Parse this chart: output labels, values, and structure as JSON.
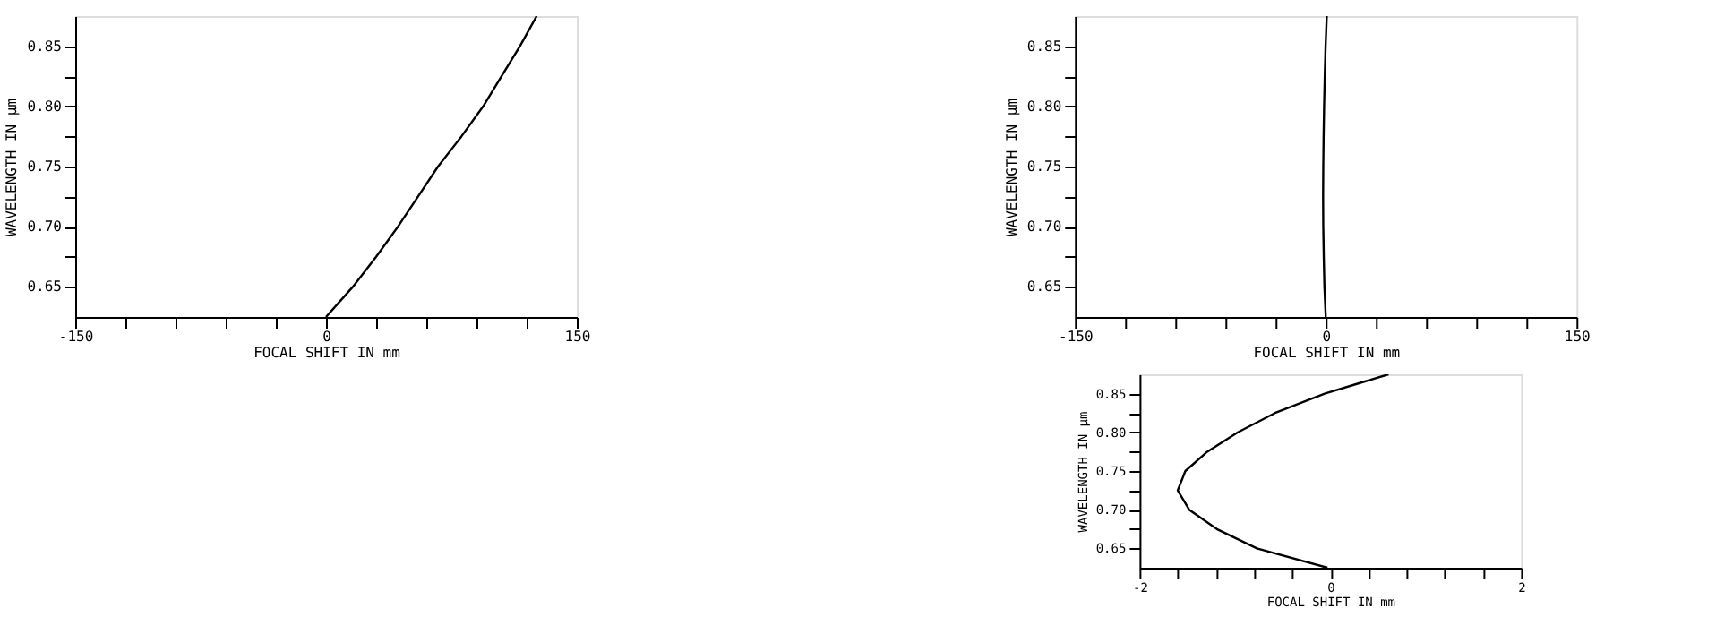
{
  "chart_data": [
    {
      "type": "line",
      "xlabel": "FOCAL SHIFT IN mm",
      "ylabel": "WAVELENGTH IN µm",
      "grid": false,
      "marker": "none",
      "line_style": "solid",
      "xlim": [
        -150,
        150
      ],
      "ylim": [
        0.625,
        0.875
      ],
      "xticks": [
        {
          "value": -150,
          "label": "-150"
        },
        {
          "value": -120,
          "label": null
        },
        {
          "value": -90,
          "label": null
        },
        {
          "value": -60,
          "label": null
        },
        {
          "value": -30,
          "label": null
        },
        {
          "value": 0,
          "label": "0"
        },
        {
          "value": 30,
          "label": null
        },
        {
          "value": 60,
          "label": null
        },
        {
          "value": 90,
          "label": null
        },
        {
          "value": 120,
          "label": null
        },
        {
          "value": 150,
          "label": "150"
        }
      ],
      "yticks": [
        {
          "value": 0.65,
          "label": "0.65"
        },
        {
          "value": 0.675,
          "label": null
        },
        {
          "value": 0.7,
          "label": "0.70"
        },
        {
          "value": 0.725,
          "label": null
        },
        {
          "value": 0.75,
          "label": "0.75"
        },
        {
          "value": 0.775,
          "label": null
        },
        {
          "value": 0.8,
          "label": "0.80"
        },
        {
          "value": 0.825,
          "label": null
        },
        {
          "value": 0.85,
          "label": "0.85"
        }
      ],
      "legend": false,
      "series": [
        {
          "color": "#000000",
          "x": [
            0,
            16,
            30,
            43,
            55,
            67,
            81,
            94,
            105,
            116,
            126
          ],
          "values": [
            0.625,
            0.65,
            0.675,
            0.7,
            0.725,
            0.75,
            0.775,
            0.8,
            0.825,
            0.85,
            0.875
          ]
        }
      ]
    },
    {
      "type": "line",
      "xlabel": "FOCAL SHIFT IN mm",
      "ylabel": "WAVELENGTH IN µm",
      "grid": false,
      "marker": "none",
      "line_style": "solid",
      "xlim": [
        -150,
        150
      ],
      "ylim": [
        0.625,
        0.875
      ],
      "xticks": [
        {
          "value": -150,
          "label": "-150"
        },
        {
          "value": -120,
          "label": null
        },
        {
          "value": -90,
          "label": null
        },
        {
          "value": -60,
          "label": null
        },
        {
          "value": -30,
          "label": null
        },
        {
          "value": 0,
          "label": "0"
        },
        {
          "value": 30,
          "label": null
        },
        {
          "value": 60,
          "label": null
        },
        {
          "value": 90,
          "label": null
        },
        {
          "value": 120,
          "label": null
        },
        {
          "value": 150,
          "label": "150"
        }
      ],
      "yticks": [
        {
          "value": 0.65,
          "label": "0.65"
        },
        {
          "value": 0.675,
          "label": null
        },
        {
          "value": 0.7,
          "label": "0.70"
        },
        {
          "value": 0.725,
          "label": null
        },
        {
          "value": 0.75,
          "label": "0.75"
        },
        {
          "value": 0.775,
          "label": null
        },
        {
          "value": 0.8,
          "label": "0.80"
        },
        {
          "value": 0.825,
          "label": null
        },
        {
          "value": 0.85,
          "label": "0.85"
        }
      ],
      "legend": false,
      "series": [
        {
          "color": "#000000",
          "x": [
            0,
            -0.8,
            -1.2,
            -1.5,
            -1.6,
            -1.5,
            -1.3,
            -1.0,
            -0.6,
            -0.1,
            0.6
          ],
          "values": [
            0.625,
            0.65,
            0.675,
            0.7,
            0.725,
            0.75,
            0.775,
            0.8,
            0.825,
            0.85,
            0.875
          ]
        }
      ]
    },
    {
      "type": "line",
      "xlabel": "FOCAL SHIFT IN mm",
      "ylabel": "WAVELENGTH IN µm",
      "grid": false,
      "legend": false,
      "marker": "none",
      "line_style": "solid",
      "xlim": [
        -2,
        2
      ],
      "ylim": [
        0.625,
        0.875
      ],
      "xticks": [
        {
          "value": -2,
          "label": "-2"
        },
        {
          "value": -1.6,
          "label": null
        },
        {
          "value": -1.2,
          "label": null
        },
        {
          "value": -0.8,
          "label": null
        },
        {
          "value": -0.4,
          "label": null
        },
        {
          "value": 0,
          "label": "0"
        },
        {
          "value": 0.4,
          "label": null
        },
        {
          "value": 0.8,
          "label": null
        },
        {
          "value": 1.2,
          "label": null
        },
        {
          "value": 1.6,
          "label": null
        },
        {
          "value": 2,
          "label": "2"
        }
      ],
      "yticks": [
        {
          "value": 0.65,
          "label": "0.65"
        },
        {
          "value": 0.675,
          "label": null
        },
        {
          "value": 0.7,
          "label": "0.70"
        },
        {
          "value": 0.725,
          "label": null
        },
        {
          "value": 0.75,
          "label": "0.75"
        },
        {
          "value": 0.775,
          "label": null
        },
        {
          "value": 0.8,
          "label": "0.80"
        },
        {
          "value": 0.825,
          "label": null
        },
        {
          "value": 0.85,
          "label": "0.85"
        }
      ],
      "series": [
        {
          "color": "#000000",
          "x": [
            -0.03,
            -0.77,
            -1.19,
            -1.48,
            -1.6,
            -1.52,
            -1.29,
            -0.97,
            -0.58,
            -0.06,
            0.61
          ],
          "values": [
            0.625,
            0.65,
            0.675,
            0.7,
            0.725,
            0.75,
            0.775,
            0.8,
            0.825,
            0.85,
            0.875
          ]
        }
      ]
    }
  ]
}
